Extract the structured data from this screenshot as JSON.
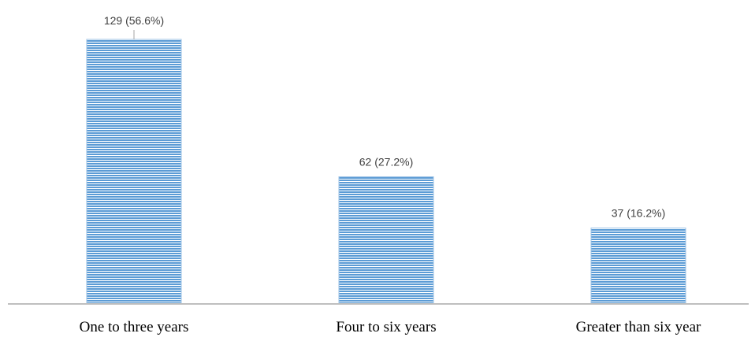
{
  "chart_data": {
    "type": "bar",
    "categories": [
      "One to three years",
      "Four to six years",
      "Greater than six year"
    ],
    "values": [
      129,
      62,
      37
    ],
    "data_labels": [
      "129 (56.6%)",
      "62 (27.2%)",
      "37 (16.2%)"
    ],
    "title": "",
    "xlabel": "",
    "ylabel": "",
    "ylim": [
      0,
      140
    ],
    "grid": false,
    "legend": "none",
    "colors": {
      "bar_fill": "#9dc3e6",
      "bar_stripe": "#5b9bd5",
      "axis": "#bfbfbf",
      "leader_line": "#a6a6a6"
    }
  }
}
